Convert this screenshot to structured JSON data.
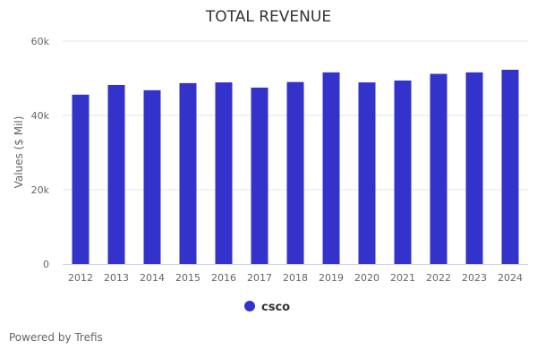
{
  "chart_data": {
    "type": "bar",
    "title": "TOTAL REVENUE",
    "xlabel": "",
    "ylabel": "Values ($ Mil)",
    "ylim": [
      0,
      60000
    ],
    "yticks": [
      0,
      20000,
      40000,
      60000
    ],
    "ytick_labels": [
      "0",
      "20k",
      "40k",
      "60k"
    ],
    "grid": true,
    "categories": [
      "2012",
      "2013",
      "2014",
      "2015",
      "2016",
      "2017",
      "2018",
      "2019",
      "2020",
      "2021",
      "2022",
      "2023",
      "2024"
    ],
    "series": [
      {
        "name": "csco",
        "color": "#3333cc",
        "values": [
          45600,
          48200,
          46800,
          48700,
          48900,
          47500,
          49000,
          51600,
          48900,
          49400,
          51200,
          51600,
          52300
        ]
      }
    ],
    "legend": {
      "position": "bottom-center",
      "entries": [
        "csco"
      ]
    }
  },
  "credit": "Powered by Trefis",
  "colors": {
    "bar": "#3333cc",
    "grid": "#e6e6e6",
    "axis": "#ccd6eb"
  }
}
